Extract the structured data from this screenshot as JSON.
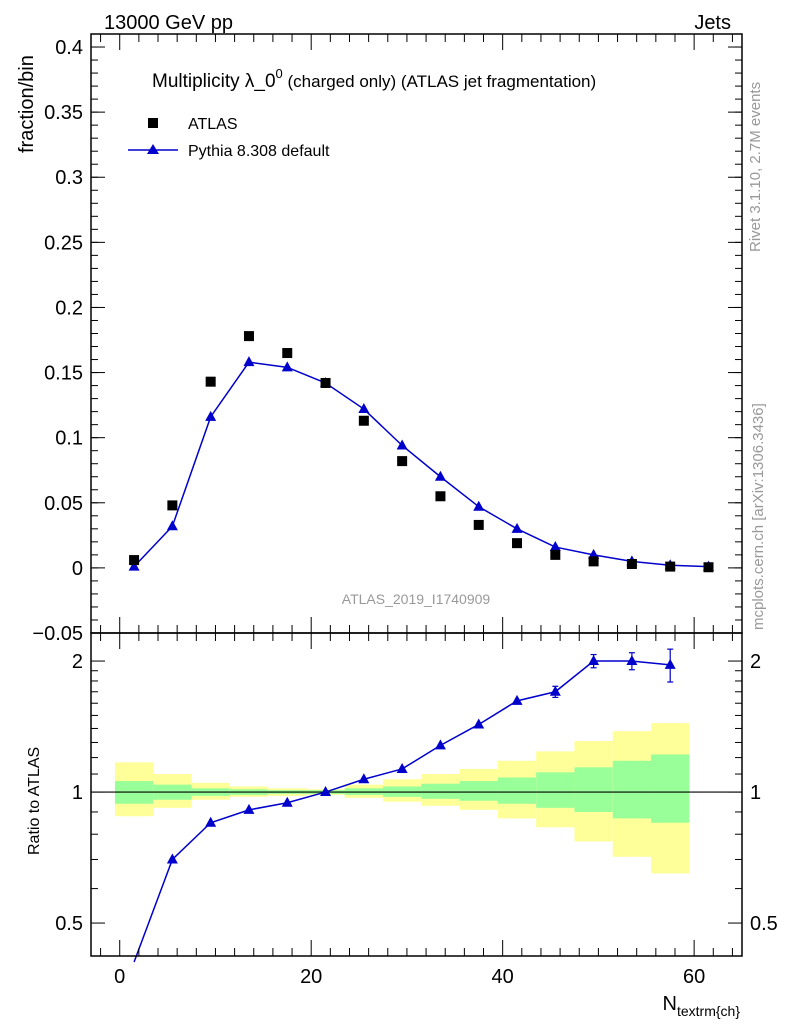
{
  "header": {
    "left": "13000 GeV pp",
    "right": "Jets"
  },
  "side_labels": {
    "rivet": "Rivet 3.1.10,  2.7M events",
    "mcplots": "mcplots.cern.ch [arXiv:1306.3436]"
  },
  "chart_data": [
    {
      "type": "scatter",
      "title_main": "Multiplicity λ_0",
      "title_sup": "0",
      "title_rest": " (charged only) (ATLAS jet fragmentation)",
      "watermark": "ATLAS_2019_I1740909",
      "ylabel": "fraction/bin",
      "xlabel_main": "N",
      "xlabel_sub": "textrm{ch}",
      "xlim": [
        -3,
        65
      ],
      "ylim": [
        -0.05,
        0.41
      ],
      "yticks": [
        -0.05,
        0,
        0.05,
        0.1,
        0.15,
        0.2,
        0.25,
        0.3,
        0.35,
        0.4
      ],
      "ytick_labels": [
        "−0.05",
        "0",
        "0.05",
        "0.1",
        "0.15",
        "0.2",
        "0.25",
        "0.3",
        "0.35",
        "0.4"
      ],
      "legend_position": "top-left",
      "series": [
        {
          "name": "ATLAS",
          "marker": "square",
          "color": "#000000",
          "x": [
            1.5,
            5.5,
            9.5,
            13.5,
            17.5,
            21.5,
            25.5,
            29.5,
            33.5,
            37.5,
            41.5,
            45.5,
            49.5,
            53.5,
            57.5,
            61.5
          ],
          "y": [
            0.006,
            0.048,
            0.143,
            0.178,
            0.165,
            0.142,
            0.113,
            0.082,
            0.055,
            0.033,
            0.019,
            0.01,
            0.005,
            0.003,
            0.001,
            0.0005
          ]
        },
        {
          "name": "Pythia 8.308 default",
          "marker": "triangle",
          "color": "#0000cc",
          "x": [
            1.5,
            5.5,
            9.5,
            13.5,
            17.5,
            21.5,
            25.5,
            29.5,
            33.5,
            37.5,
            41.5,
            45.5,
            49.5,
            53.5,
            57.5,
            61.5
          ],
          "y": [
            0.001,
            0.032,
            0.116,
            0.158,
            0.154,
            0.142,
            0.122,
            0.094,
            0.07,
            0.047,
            0.03,
            0.016,
            0.01,
            0.005,
            0.002,
            0.001
          ]
        }
      ]
    },
    {
      "type": "line",
      "ylabel": "Ratio to ATLAS",
      "xlim": [
        -3,
        65
      ],
      "ylim": [
        0.42,
        2.32
      ],
      "log_y": true,
      "yticks": [
        0.5,
        1,
        2
      ],
      "ytick_labels": [
        "0.5",
        "1",
        "2"
      ],
      "xticks": [
        0,
        20,
        40,
        60
      ],
      "xtick_labels": [
        "0",
        "20",
        "40",
        "60"
      ],
      "bins": [
        [
          -0.5,
          3.5
        ],
        [
          3.5,
          7.5
        ],
        [
          7.5,
          11.5
        ],
        [
          11.5,
          15.5
        ],
        [
          15.5,
          19.5
        ],
        [
          19.5,
          23.5
        ],
        [
          23.5,
          27.5
        ],
        [
          27.5,
          31.5
        ],
        [
          31.5,
          35.5
        ],
        [
          35.5,
          39.5
        ],
        [
          39.5,
          43.5
        ],
        [
          43.5,
          47.5
        ],
        [
          47.5,
          51.5
        ],
        [
          51.5,
          55.5
        ],
        [
          55.5,
          59.5
        ]
      ],
      "band_inner": [
        [
          0.94,
          1.06
        ],
        [
          0.96,
          1.04
        ],
        [
          0.98,
          1.02
        ],
        [
          0.985,
          1.015
        ],
        [
          0.99,
          1.01
        ],
        [
          0.99,
          1.01
        ],
        [
          0.985,
          1.02
        ],
        [
          0.975,
          1.03
        ],
        [
          0.965,
          1.045
        ],
        [
          0.955,
          1.06
        ],
        [
          0.94,
          1.08
        ],
        [
          0.92,
          1.11
        ],
        [
          0.9,
          1.14
        ],
        [
          0.87,
          1.18
        ],
        [
          0.85,
          1.22
        ]
      ],
      "band_outer": [
        [
          0.88,
          1.17
        ],
        [
          0.92,
          1.1
        ],
        [
          0.96,
          1.05
        ],
        [
          0.975,
          1.03
        ],
        [
          0.98,
          1.02
        ],
        [
          0.985,
          1.015
        ],
        [
          0.97,
          1.04
        ],
        [
          0.95,
          1.07
        ],
        [
          0.93,
          1.1
        ],
        [
          0.91,
          1.13
        ],
        [
          0.87,
          1.18
        ],
        [
          0.83,
          1.24
        ],
        [
          0.77,
          1.31
        ],
        [
          0.71,
          1.38
        ],
        [
          0.65,
          1.44
        ]
      ],
      "band_colors": {
        "inner": "#99ff99",
        "outer": "#ffff99"
      },
      "series": [
        {
          "name": "Pythia 8.308 default",
          "color": "#0000cc",
          "x": [
            5.5,
            9.5,
            13.5,
            17.5,
            21.5,
            25.5,
            29.5,
            33.5,
            37.5,
            41.5,
            45.5,
            49.5,
            53.5,
            57.5
          ],
          "y": [
            0.7,
            0.85,
            0.91,
            0.945,
            1.0,
            1.07,
            1.13,
            1.28,
            1.43,
            1.62,
            1.7,
            2.0,
            2.0,
            1.96
          ],
          "err": [
            0,
            0,
            0,
            0,
            0,
            0,
            0,
            0,
            0,
            0,
            0.05,
            0.07,
            0.09,
            0.17
          ]
        }
      ]
    }
  ]
}
